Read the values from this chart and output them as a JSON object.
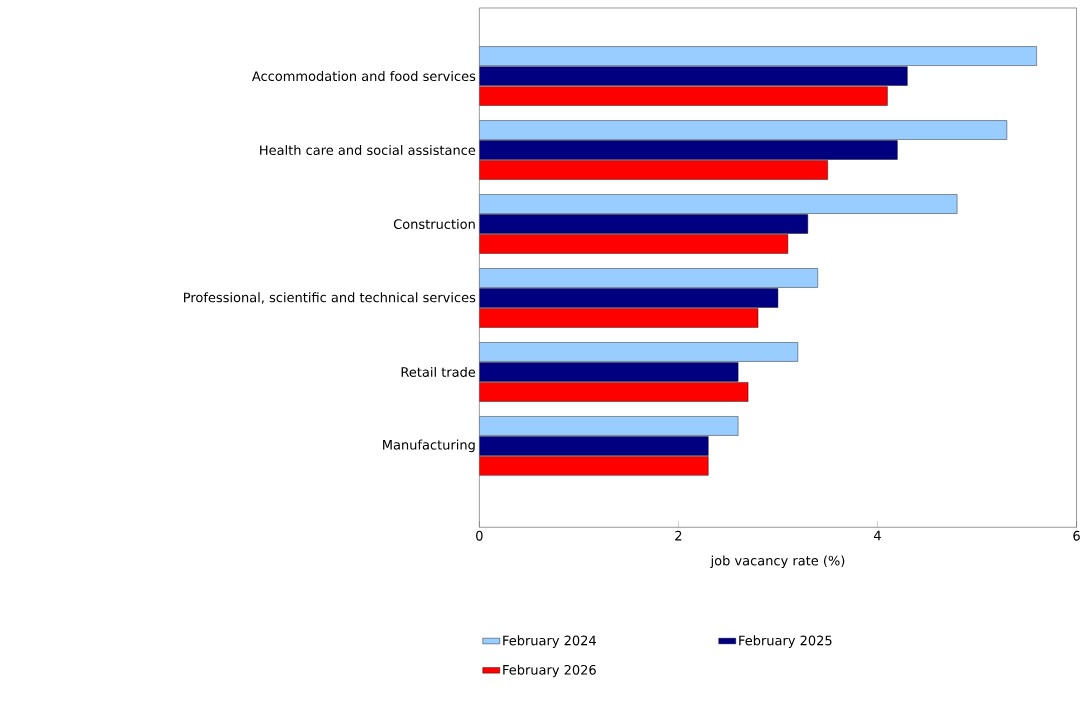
{
  "chart_data": {
    "type": "bar",
    "orientation": "horizontal",
    "categories": [
      "Accommodation and food services",
      "Health care and social assistance",
      "Construction",
      "Professional, scientific and technical services",
      "Retail trade",
      "Manufacturing"
    ],
    "series": [
      {
        "name": "February 2024",
        "color": "#99ccff",
        "values": [
          5.6,
          5.3,
          4.8,
          3.4,
          3.2,
          2.6
        ]
      },
      {
        "name": "February 2025",
        "color": "#000080",
        "values": [
          4.3,
          4.2,
          3.3,
          3.0,
          2.6,
          2.3
        ]
      },
      {
        "name": "February 2026",
        "color": "#ff0000",
        "values": [
          4.1,
          3.5,
          3.1,
          2.8,
          2.7,
          2.3
        ]
      }
    ],
    "xlim": [
      0,
      6
    ],
    "xticks": [
      0,
      2,
      4,
      6
    ],
    "xlabel": "job vacancy rate (%)",
    "legend": "bottom"
  }
}
